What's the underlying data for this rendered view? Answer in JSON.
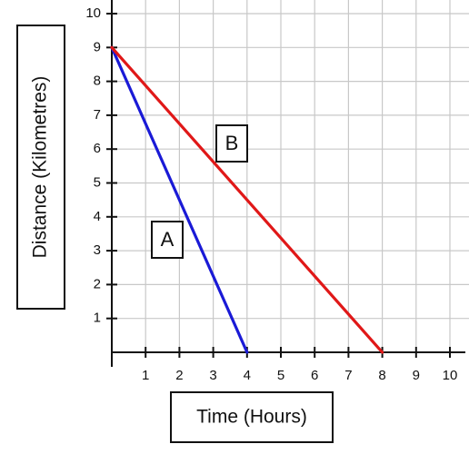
{
  "chart_data": {
    "type": "line",
    "xlabel": "Time (Hours)",
    "ylabel": "Distance (Kilometres)",
    "xlim": [
      0,
      10
    ],
    "ylim": [
      0,
      10
    ],
    "x_ticks": [
      "1",
      "2",
      "3",
      "4",
      "5",
      "6",
      "7",
      "8",
      "9",
      "10"
    ],
    "y_ticks": [
      "1",
      "2",
      "3",
      "4",
      "5",
      "6",
      "7",
      "8",
      "9",
      "10"
    ],
    "grid": true,
    "series": [
      {
        "name": "A",
        "color": "#1a1ad6",
        "x": [
          0,
          4
        ],
        "y": [
          9,
          0
        ]
      },
      {
        "name": "B",
        "color": "#e01818",
        "x": [
          0,
          8
        ],
        "y": [
          9,
          0
        ]
      }
    ]
  }
}
